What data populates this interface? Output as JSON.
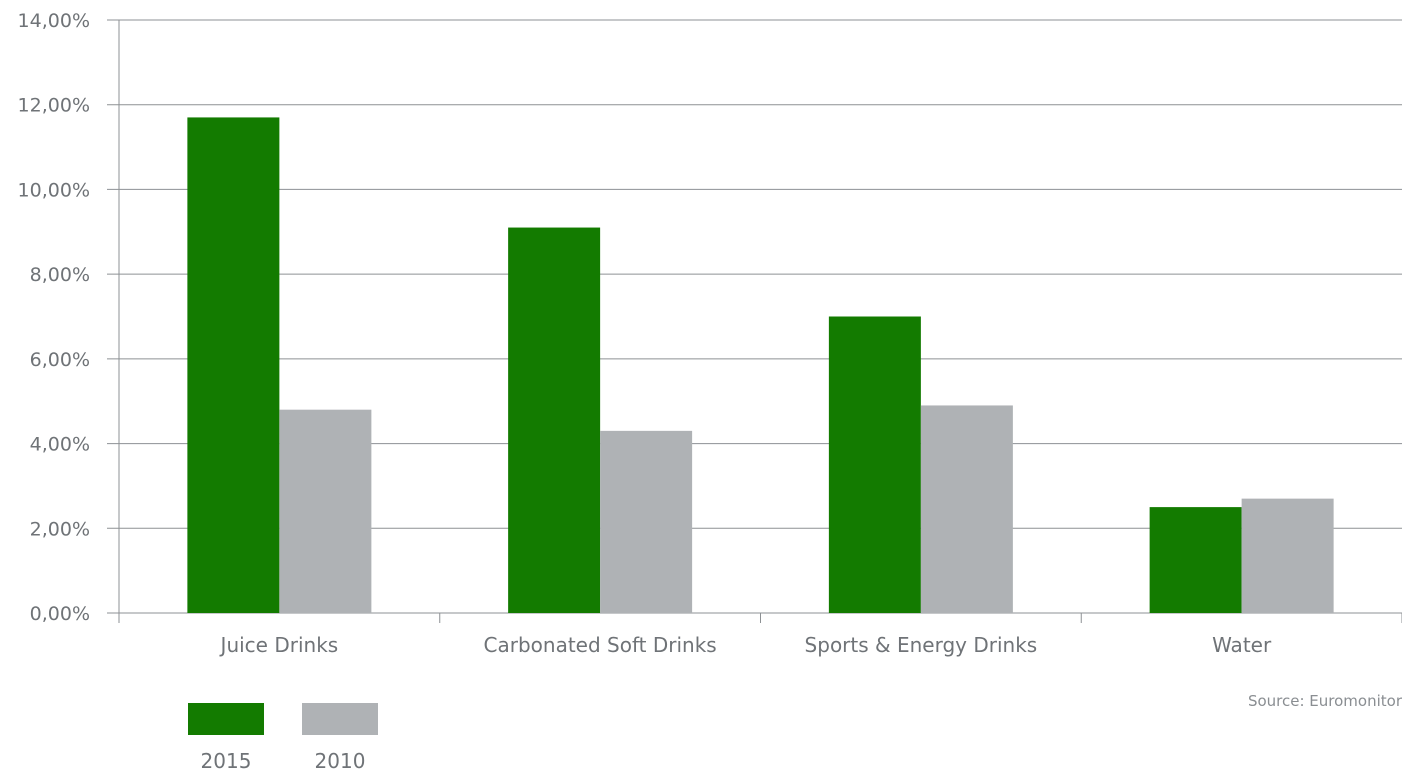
{
  "chart_data": {
    "type": "bar",
    "categories": [
      "Juice Drinks",
      "Carbonated Soft Drinks",
      "Sports & Energy Drinks",
      "Water"
    ],
    "series": [
      {
        "name": "2015",
        "color": "#137b00",
        "values": [
          11.7,
          9.1,
          7.0,
          2.5
        ]
      },
      {
        "name": "2010",
        "color": "#afb2b5",
        "values": [
          4.8,
          4.3,
          4.9,
          2.7
        ]
      }
    ],
    "yticks": [
      "0,00%",
      "2,00%",
      "4,00%",
      "6,00%",
      "8,00%",
      "10,00%",
      "12,00%",
      "14,00%"
    ],
    "ylim": [
      0,
      14
    ],
    "grid": true,
    "legend_position": "bottom-left",
    "source": "Source: Euromonitor"
  }
}
